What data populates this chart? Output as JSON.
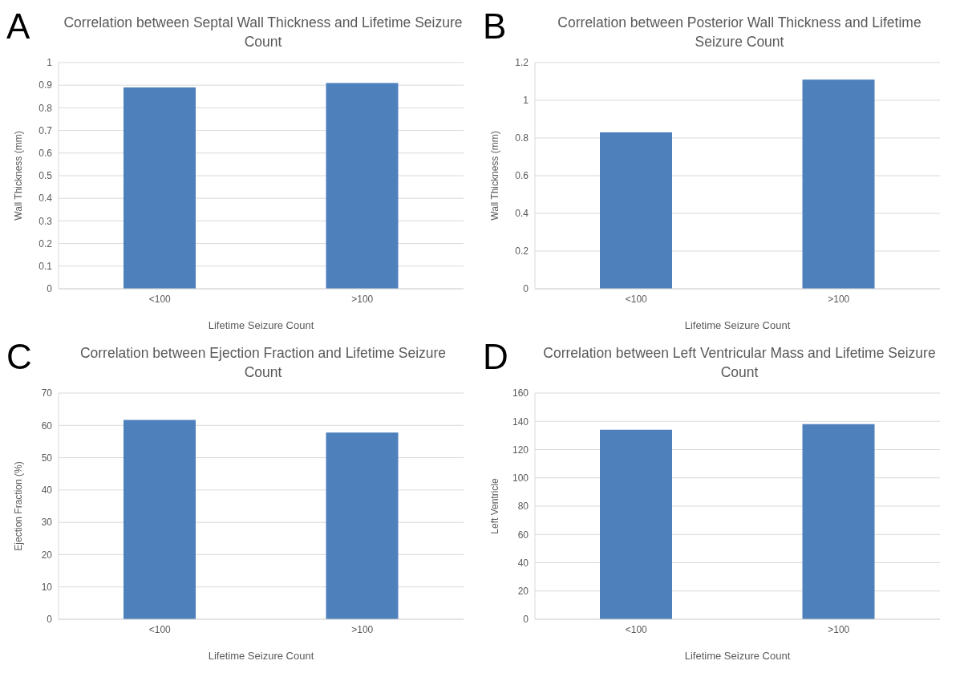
{
  "chart_data": [
    {
      "type": "bar",
      "title": "Correlation between Septal Wall Thickness and Lifetime Seizure Count",
      "xlabel": "Lifetime Seizure Count",
      "ylabel": "Wall Thickness (mm)",
      "categories": [
        "<100",
        ">100"
      ],
      "values": [
        0.89,
        0.91
      ],
      "color": "#4e80bc",
      "ylim": [
        0,
        1
      ],
      "yticks": [
        0,
        0.1,
        0.2,
        0.3,
        0.4,
        0.5,
        0.6,
        0.7,
        0.8,
        0.9,
        1
      ],
      "grid": "y",
      "annotations": [
        "A"
      ]
    },
    {
      "type": "bar",
      "title": "Correlation between Posterior Wall Thickness and Lifetime Seizure Count",
      "xlabel": "Lifetime Seizure Count",
      "ylabel": "Wall Thickness (mm)",
      "categories": [
        "<100",
        ">100"
      ],
      "values": [
        0.83,
        1.11
      ],
      "color": "#4e80bc",
      "ylim": [
        0,
        1.2
      ],
      "yticks": [
        0,
        0.2,
        0.4,
        0.6,
        0.8,
        1,
        1.2
      ],
      "grid": "y",
      "annotations": [
        "B"
      ]
    },
    {
      "type": "bar",
      "title": "Correlation between Ejection Fraction and Lifetime Seizure Count",
      "xlabel": "Lifetime Seizure Count",
      "ylabel": "Ejection Fraction (%)",
      "categories": [
        "<100",
        ">100"
      ],
      "values": [
        61.7,
        57.8
      ],
      "color": "#4e80bc",
      "ylim": [
        0,
        70
      ],
      "yticks": [
        0,
        10,
        20,
        30,
        40,
        50,
        60,
        70
      ],
      "grid": "y",
      "annotations": [
        "C"
      ]
    },
    {
      "type": "bar",
      "title": "Correlation between Left Ventricular Mass and Lifetime Seizure Count",
      "xlabel": "Lifetime Seizure Count",
      "ylabel": "Left Ventricle",
      "categories": [
        "<100",
        ">100"
      ],
      "values": [
        134,
        138
      ],
      "color": "#4e80bc",
      "ylim": [
        0,
        160
      ],
      "yticks": [
        0,
        20,
        40,
        60,
        80,
        100,
        120,
        140,
        160
      ],
      "grid": "y",
      "annotations": [
        "D"
      ]
    }
  ]
}
